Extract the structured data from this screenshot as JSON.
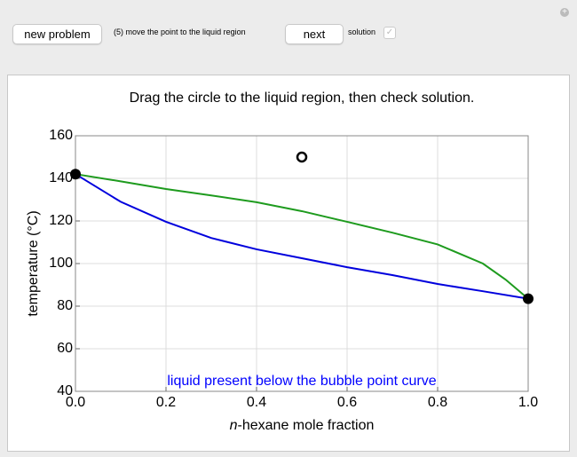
{
  "controls": {
    "new_problem": "new problem",
    "instruction": "(5) move the point to the liquid region",
    "next": "next",
    "solution": "solution"
  },
  "chart_data": {
    "type": "line",
    "title": "Drag the circle to the liquid region, then check solution.",
    "x_label": [
      "n",
      "-hexane mole fraction"
    ],
    "y_label": "temperature (°C)",
    "annotation": "liquid present below the bubble point curve",
    "annotation_color": "#0000ff",
    "xlim": [
      0,
      1
    ],
    "ylim": [
      40,
      160
    ],
    "xticks": [
      {
        "value": 0,
        "label": "0.0"
      },
      {
        "value": 0.2,
        "label": "0.2"
      },
      {
        "value": 0.4,
        "label": "0.4"
      },
      {
        "value": 0.6,
        "label": "0.6"
      },
      {
        "value": 0.8,
        "label": "0.8"
      },
      {
        "value": 1,
        "label": "1.0"
      }
    ],
    "yticks": [
      40,
      60,
      80,
      100,
      120,
      140,
      160
    ],
    "grid": true,
    "series": [
      {
        "color": "#1e9b1e",
        "x": [
          0,
          0.1,
          0.2,
          0.3,
          0.4,
          0.5,
          0.6,
          0.7,
          0.8,
          0.9,
          0.95,
          1
        ],
        "values": [
          142,
          138.6,
          135,
          132,
          128.8,
          124.6,
          119.6,
          114.5,
          109,
          100,
          92.5,
          83.5
        ]
      },
      {
        "color": "#0000dd",
        "x": [
          0,
          0.1,
          0.2,
          0.3,
          0.4,
          0.5,
          0.6,
          0.7,
          0.8,
          0.9,
          1
        ],
        "values": [
          142,
          129,
          119.6,
          112,
          106.7,
          102.5,
          98.3,
          94.6,
          90.4,
          87,
          83.5
        ]
      }
    ],
    "points": {
      "x": [
        0,
        1
      ],
      "values": [
        142,
        83.5
      ]
    },
    "marker": {
      "x": 0.5,
      "y": 150
    }
  }
}
